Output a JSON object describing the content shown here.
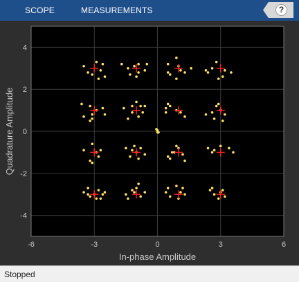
{
  "toolstrip": {
    "tabs": [
      {
        "label": "SCOPE"
      },
      {
        "label": "MEASUREMENTS"
      }
    ],
    "help_glyph": "?"
  },
  "status": {
    "text": "Stopped"
  },
  "colors": {
    "toolstrip": "#1f4f8b",
    "axes_background": "#000000",
    "grid": "#3a3a3a",
    "axis_text": "#c8c8c8",
    "received": "#ffe066",
    "reference": "#ff2020"
  },
  "chart_data": {
    "type": "scatter",
    "title": "",
    "xlabel": "In-phase Amplitude",
    "ylabel": "Quadrature Amplitude",
    "xlim": [
      -6,
      6
    ],
    "ylim": [
      -5,
      5
    ],
    "xticks": [
      -6,
      -3,
      0,
      3,
      6
    ],
    "yticks": [
      -4,
      -2,
      0,
      2,
      4
    ],
    "grid": true,
    "series": [
      {
        "type": "scatter",
        "marker": "dot",
        "points": [
          [
            -3.5,
            3.1
          ],
          [
            -2.9,
            3.3
          ],
          [
            -2.6,
            3.2
          ],
          [
            -2.7,
            2.9
          ],
          [
            -3.1,
            2.7
          ],
          [
            -2.5,
            2.6
          ],
          [
            -3.3,
            2.8
          ],
          [
            -2.8,
            2.5
          ],
          [
            -1.7,
            3.2
          ],
          [
            -1.1,
            3.1
          ],
          [
            -0.9,
            2.8
          ],
          [
            -1.3,
            2.7
          ],
          [
            -0.5,
            3.2
          ],
          [
            -1.0,
            2.6
          ],
          [
            -0.6,
            2.9
          ],
          [
            -1.4,
            3.0
          ],
          [
            -0.9,
            3.2
          ],
          [
            0.5,
            3.2
          ],
          [
            0.9,
            3.5
          ],
          [
            1.1,
            2.9
          ],
          [
            0.6,
            2.7
          ],
          [
            1.3,
            2.8
          ],
          [
            0.9,
            2.5
          ],
          [
            0.5,
            2.8
          ],
          [
            1.6,
            3.0
          ],
          [
            1.0,
            3.1
          ],
          [
            2.3,
            2.9
          ],
          [
            2.8,
            3.3
          ],
          [
            3.2,
            2.9
          ],
          [
            2.4,
            2.8
          ],
          [
            3.1,
            2.6
          ],
          [
            3.5,
            2.8
          ],
          [
            2.9,
            2.5
          ],
          [
            2.6,
            3.0
          ],
          [
            -3.6,
            1.3
          ],
          [
            -3.2,
            1.2
          ],
          [
            -3.1,
            0.8
          ],
          [
            -2.9,
            1.0
          ],
          [
            -3.5,
            0.7
          ],
          [
            -3.1,
            0.6
          ],
          [
            -2.5,
            0.8
          ],
          [
            -3.2,
            0.5
          ],
          [
            -2.6,
            1.1
          ],
          [
            -1.6,
            1.1
          ],
          [
            -1.2,
            0.9
          ],
          [
            -0.8,
            1.2
          ],
          [
            -0.7,
            0.9
          ],
          [
            -1.4,
            0.6
          ],
          [
            -0.9,
            0.7
          ],
          [
            -1.0,
            1.4
          ],
          [
            -0.6,
            1.2
          ],
          [
            -1.2,
            1.2
          ],
          [
            0.4,
            1.1
          ],
          [
            0.5,
            1.3
          ],
          [
            0.9,
            1.0
          ],
          [
            1.1,
            0.9
          ],
          [
            0.6,
            1.2
          ],
          [
            1.3,
            0.7
          ],
          [
            0.4,
            0.9
          ],
          [
            2.3,
            0.8
          ],
          [
            2.8,
            1.2
          ],
          [
            3.0,
            1.0
          ],
          [
            3.2,
            0.8
          ],
          [
            2.7,
            0.6
          ],
          [
            2.9,
            1.3
          ],
          [
            3.1,
            0.5
          ],
          [
            2.6,
            0.9
          ],
          [
            -0.05,
            0.1
          ],
          [
            0.0,
            0.05
          ],
          [
            0.05,
            -0.05
          ],
          [
            0.0,
            -0.05
          ],
          [
            -3.5,
            -0.9
          ],
          [
            -3.1,
            -0.6
          ],
          [
            -2.9,
            -1.0
          ],
          [
            -2.8,
            -1.2
          ],
          [
            -3.2,
            -1.4
          ],
          [
            -2.7,
            -0.9
          ],
          [
            -3.1,
            -1.5
          ],
          [
            -1.5,
            -0.8
          ],
          [
            -1.2,
            -0.9
          ],
          [
            -1.0,
            -1.0
          ],
          [
            -0.8,
            -0.8
          ],
          [
            -1.3,
            -1.2
          ],
          [
            -0.9,
            -1.3
          ],
          [
            -0.6,
            -1.1
          ],
          [
            -1.1,
            -0.7
          ],
          [
            0.5,
            -1.2
          ],
          [
            0.8,
            -1.0
          ],
          [
            1.0,
            -0.8
          ],
          [
            1.2,
            -1.1
          ],
          [
            0.6,
            -1.3
          ],
          [
            1.3,
            -1.4
          ],
          [
            0.9,
            -0.7
          ],
          [
            0.7,
            -1.0
          ],
          [
            2.4,
            -0.8
          ],
          [
            2.7,
            -0.9
          ],
          [
            3.0,
            -0.7
          ],
          [
            3.4,
            -0.8
          ],
          [
            3.6,
            -1.0
          ],
          [
            2.6,
            -1.0
          ],
          [
            -3.5,
            -2.9
          ],
          [
            -3.3,
            -2.7
          ],
          [
            -3.0,
            -3.0
          ],
          [
            -2.8,
            -2.8
          ],
          [
            -2.6,
            -3.0
          ],
          [
            -2.9,
            -3.2
          ],
          [
            -3.2,
            -3.1
          ],
          [
            -2.5,
            -2.9
          ],
          [
            -2.7,
            -3.2
          ],
          [
            -3.3,
            -3.0
          ],
          [
            -1.5,
            -3.0
          ],
          [
            -1.2,
            -2.8
          ],
          [
            -1.0,
            -2.7
          ],
          [
            -0.8,
            -3.1
          ],
          [
            -1.4,
            -3.2
          ],
          [
            -0.6,
            -2.9
          ],
          [
            -0.9,
            -2.5
          ],
          [
            -1.1,
            -2.9
          ],
          [
            0.5,
            -2.7
          ],
          [
            0.9,
            -2.6
          ],
          [
            1.1,
            -2.9
          ],
          [
            1.3,
            -3.0
          ],
          [
            0.6,
            -3.1
          ],
          [
            1.0,
            -3.2
          ],
          [
            0.4,
            -2.9
          ],
          [
            1.2,
            -2.7
          ],
          [
            2.5,
            -2.8
          ],
          [
            2.7,
            -3.0
          ],
          [
            3.0,
            -2.9
          ],
          [
            3.2,
            -3.1
          ],
          [
            2.9,
            -3.2
          ],
          [
            2.6,
            -2.7
          ],
          [
            3.1,
            -2.8
          ]
        ]
      },
      {
        "type": "scatter",
        "marker": "plus",
        "points": [
          [
            -3,
            3
          ],
          [
            -1,
            3
          ],
          [
            1,
            3
          ],
          [
            3,
            3
          ],
          [
            -3,
            1
          ],
          [
            -1,
            1
          ],
          [
            1,
            1
          ],
          [
            3,
            1
          ],
          [
            -3,
            -1
          ],
          [
            -1,
            -1
          ],
          [
            1,
            -1
          ],
          [
            3,
            -1
          ],
          [
            -3,
            -3
          ],
          [
            -1,
            -3
          ],
          [
            1,
            -3
          ],
          [
            3,
            -3
          ]
        ]
      }
    ]
  }
}
